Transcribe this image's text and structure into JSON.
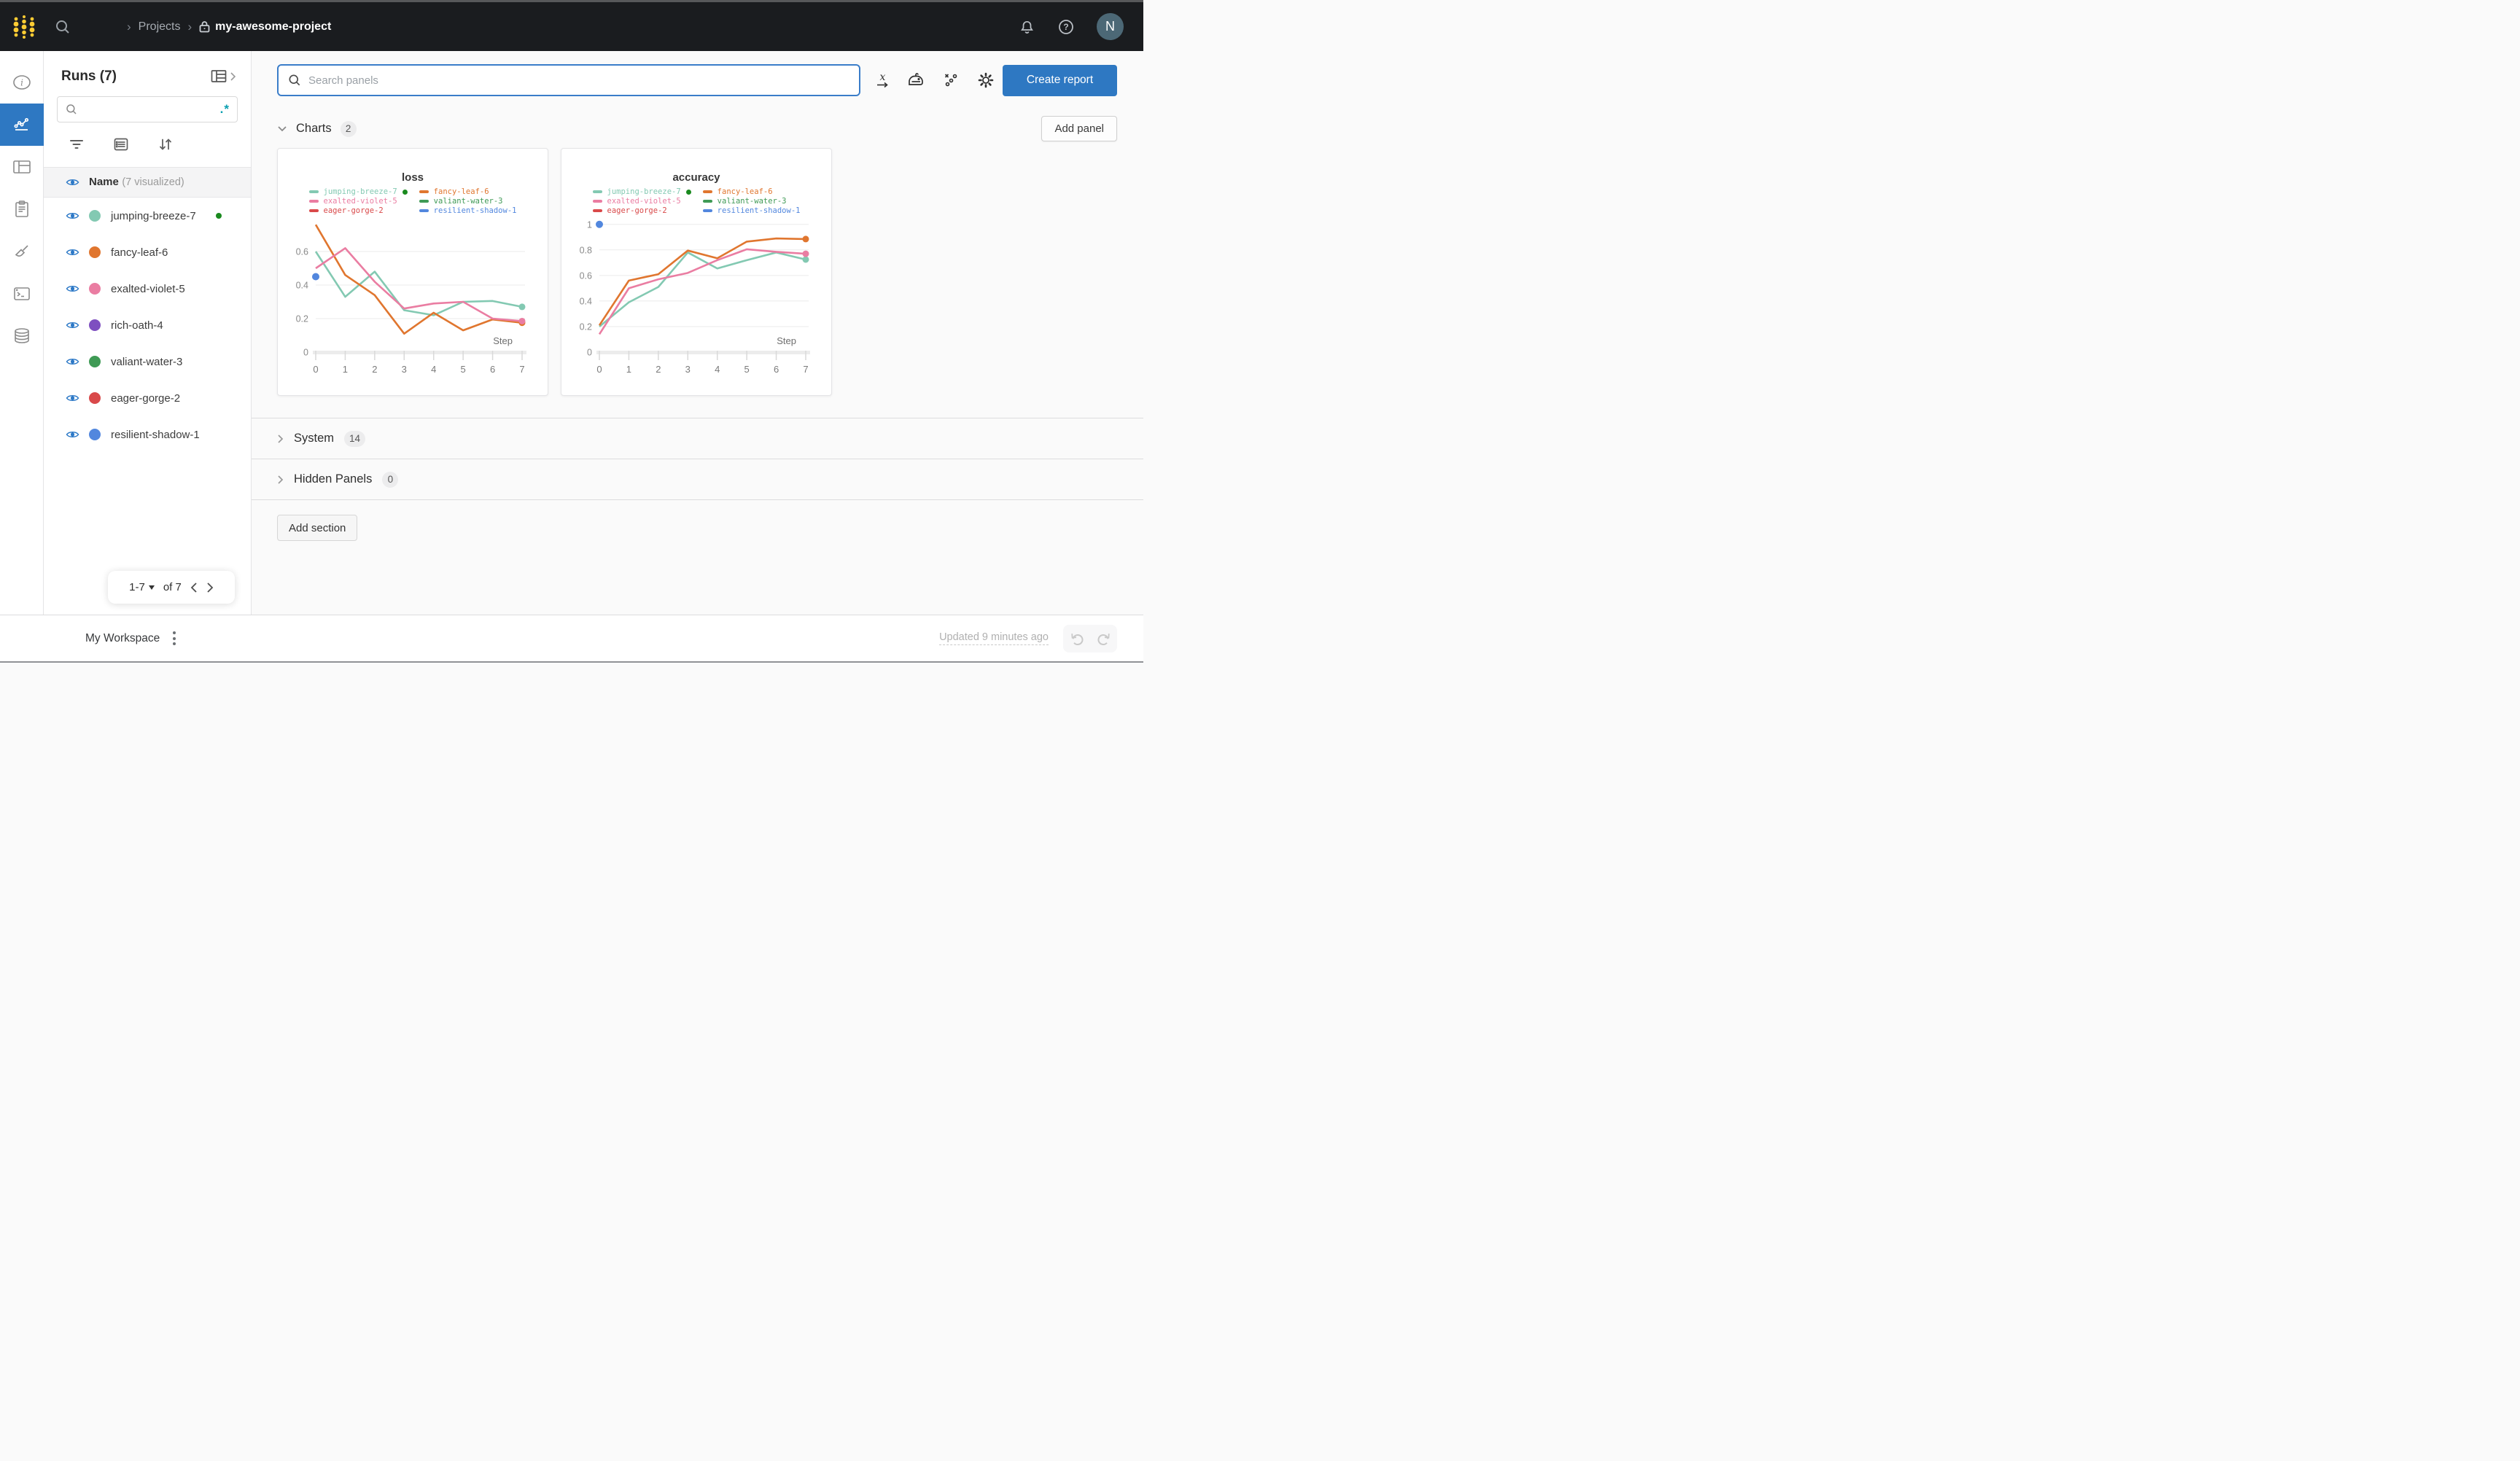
{
  "topbar": {
    "breadcrumb": {
      "projects": "Projects",
      "project_name": "my-awesome-project"
    },
    "avatar_initial": "N"
  },
  "runs_sidebar": {
    "title": "Runs (7)",
    "search_placeholder": "",
    "regex_icon": ".*",
    "header": {
      "name": "Name",
      "visualized": "(7 visualized)"
    },
    "runs": [
      {
        "name": "jumping-breeze-7",
        "color": "#83c9b2",
        "running": true
      },
      {
        "name": "fancy-leaf-6",
        "color": "#e0762f",
        "running": false
      },
      {
        "name": "exalted-violet-5",
        "color": "#ea7da2",
        "running": false
      },
      {
        "name": "rich-oath-4",
        "color": "#7e4fc0",
        "running": false
      },
      {
        "name": "valiant-water-3",
        "color": "#3f9a55",
        "running": false
      },
      {
        "name": "eager-gorge-2",
        "color": "#d9494a",
        "running": false
      },
      {
        "name": "resilient-shadow-1",
        "color": "#5287de",
        "running": false
      }
    ],
    "pager": {
      "range": "1-7",
      "of": "of 7"
    }
  },
  "main": {
    "panel_search_placeholder": "Search panels",
    "create_report": "Create report",
    "sections": {
      "charts": {
        "label": "Charts",
        "count": "2"
      },
      "system": {
        "label": "System",
        "count": "14"
      },
      "hidden": {
        "label": "Hidden Panels",
        "count": "0"
      }
    },
    "add_panel": "Add panel",
    "add_section": "Add section"
  },
  "chart_data": [
    {
      "type": "line",
      "title": "loss",
      "xlabel": "Step",
      "x_ticks": [
        0,
        1,
        2,
        3,
        4,
        5,
        6,
        7
      ],
      "xmax": 7,
      "ylim": [
        0,
        0.8
      ],
      "y_ticks": [
        0,
        0.2,
        0.4,
        0.6
      ],
      "grid": true,
      "legend_position": "top",
      "series": [
        {
          "name": "jumping-breeze-7",
          "color": "#83c9b2",
          "running": true,
          "x": [
            0,
            1,
            2,
            3,
            4,
            5,
            6,
            7
          ],
          "y": [
            0.6,
            0.33,
            0.48,
            0.25,
            0.22,
            0.3,
            0.305,
            0.27
          ]
        },
        {
          "name": "fancy-leaf-6",
          "color": "#e0762f",
          "running": false,
          "x": [
            0,
            1,
            2,
            3,
            4,
            5,
            6,
            7
          ],
          "y": [
            0.76,
            0.46,
            0.34,
            0.11,
            0.235,
            0.13,
            0.195,
            0.175
          ]
        },
        {
          "name": "exalted-violet-5",
          "color": "#ea7da2",
          "running": false,
          "x": [
            0,
            1,
            2,
            3,
            4,
            5,
            6,
            7
          ],
          "y": [
            0.5,
            0.62,
            0.42,
            0.26,
            0.29,
            0.3,
            0.2,
            0.185
          ]
        },
        {
          "name": "valiant-water-3",
          "color": "#3f9a55",
          "running": false,
          "x": [],
          "y": []
        },
        {
          "name": "eager-gorge-2",
          "color": "#d9494a",
          "running": false,
          "x": [],
          "y": []
        },
        {
          "name": "resilient-shadow-1",
          "color": "#5287de",
          "running": false,
          "x": [
            0
          ],
          "y": [
            0.45
          ]
        }
      ]
    },
    {
      "type": "line",
      "title": "accuracy",
      "xlabel": "Step",
      "x_ticks": [
        0,
        1,
        2,
        3,
        4,
        5,
        6,
        7
      ],
      "xmax": 7,
      "ylim": [
        0,
        1.05
      ],
      "y_ticks": [
        0,
        0.2,
        0.4,
        0.6,
        0.8,
        1
      ],
      "grid": true,
      "legend_position": "top",
      "series": [
        {
          "name": "jumping-breeze-7",
          "color": "#83c9b2",
          "running": true,
          "x": [
            0,
            1,
            2,
            3,
            4,
            5,
            6,
            7
          ],
          "y": [
            0.2,
            0.39,
            0.51,
            0.78,
            0.655,
            0.72,
            0.78,
            0.725
          ]
        },
        {
          "name": "fancy-leaf-6",
          "color": "#e0762f",
          "running": false,
          "x": [
            0,
            1,
            2,
            3,
            4,
            5,
            6,
            7
          ],
          "y": [
            0.21,
            0.56,
            0.61,
            0.795,
            0.735,
            0.865,
            0.89,
            0.885
          ]
        },
        {
          "name": "exalted-violet-5",
          "color": "#ea7da2",
          "running": false,
          "x": [
            0,
            1,
            2,
            3,
            4,
            5,
            6,
            7
          ],
          "y": [
            0.14,
            0.5,
            0.57,
            0.62,
            0.72,
            0.805,
            0.785,
            0.77
          ]
        },
        {
          "name": "valiant-water-3",
          "color": "#3f9a55",
          "running": false,
          "x": [],
          "y": []
        },
        {
          "name": "eager-gorge-2",
          "color": "#d9494a",
          "running": false,
          "x": [],
          "y": []
        },
        {
          "name": "resilient-shadow-1",
          "color": "#5287de",
          "running": false,
          "x": [
            0
          ],
          "y": [
            1.0
          ]
        }
      ]
    }
  ],
  "bottombar": {
    "workspace": "My Workspace",
    "updated": "Updated 9 minutes ago"
  },
  "colors": {
    "accent_blue": "#2e78c2",
    "running_green": "#1a8a1f",
    "topbar_bg": "#1a1c1f",
    "logo_yellow": "#ffcc33"
  }
}
